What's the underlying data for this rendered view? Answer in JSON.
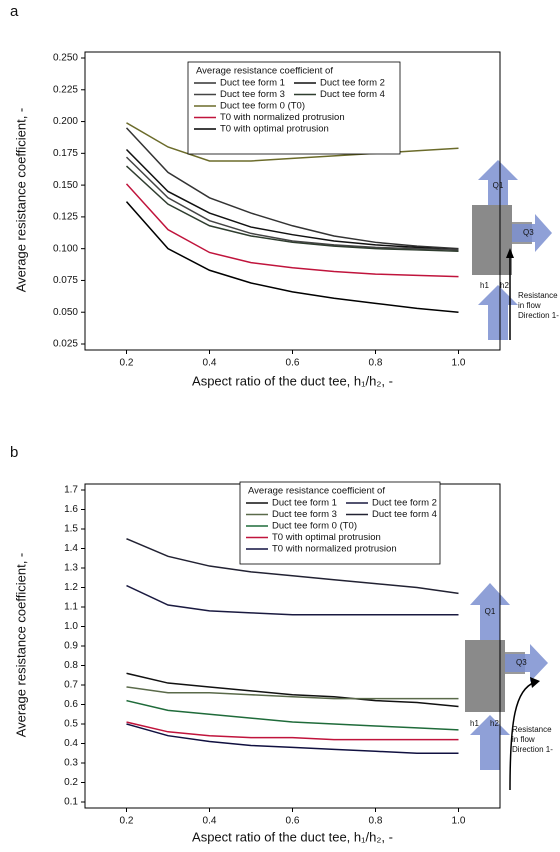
{
  "chart_data": [
    {
      "type": "line",
      "panel_label": "a",
      "xlabel": "Aspect ratio of the duct tee, h₁/h₂, -",
      "ylabel": "Average resistance coefficient, -",
      "legend_title": "Average resistance coefficient of",
      "x": [
        0.2,
        0.3,
        0.4,
        0.5,
        0.6,
        0.7,
        0.8,
        0.9,
        1.0
      ],
      "xlim": [
        0.1,
        1.1
      ],
      "xticks": [
        0.2,
        0.4,
        0.6,
        0.8,
        {
          "value": 1,
          "label": "1.0"
        }
      ],
      "ylim": [
        0.025,
        0.25
      ],
      "yticks": [
        0.025,
        {
          "value": 0.05,
          "label": "0.050"
        },
        0.075,
        {
          "value": 0.1,
          "label": "0.100"
        },
        0.125,
        {
          "value": 0.15,
          "label": "0.150"
        },
        0.175,
        {
          "value": 0.2,
          "label": "0.200"
        },
        0.225,
        {
          "value": 0.25,
          "label": "0.250"
        }
      ],
      "series": [
        {
          "name": "Duct tee form 1",
          "color": "#333333",
          "values": [
            0.195,
            0.16,
            0.14,
            0.128,
            0.118,
            0.11,
            0.105,
            0.102,
            0.1
          ]
        },
        {
          "name": "Duct tee form 2",
          "color": "#111111",
          "values": [
            0.178,
            0.145,
            0.128,
            0.117,
            0.111,
            0.106,
            0.103,
            0.101,
            0.099
          ]
        },
        {
          "name": "Duct tee form 3",
          "color": "#444444",
          "values": [
            0.172,
            0.14,
            0.122,
            0.112,
            0.106,
            0.103,
            0.101,
            0.1,
            0.099
          ]
        },
        {
          "name": "Duct tee form 4",
          "color": "#2f3d2f",
          "values": [
            0.165,
            0.135,
            0.118,
            0.11,
            0.105,
            0.102,
            0.1,
            0.099,
            0.098
          ]
        },
        {
          "name": "Duct tee form 0 (T0)",
          "color": "#6b6b2a",
          "values": [
            0.199,
            0.18,
            0.169,
            0.169,
            0.171,
            0.173,
            0.175,
            0.177,
            0.179
          ]
        },
        {
          "name": "T0 with normalized protrusion",
          "color": "#c0143c",
          "values": [
            0.151,
            0.115,
            0.097,
            0.089,
            0.085,
            0.082,
            0.08,
            0.079,
            0.078
          ]
        },
        {
          "name": "T0 with optimal protrusion",
          "color": "#000000",
          "values": [
            0.137,
            0.1,
            0.083,
            0.073,
            0.066,
            0.061,
            0.057,
            0.053,
            0.05
          ]
        }
      ],
      "annotation": [
        "Resistance",
        "in flow",
        "Direction 1-"
      ],
      "inset_labels": [
        "Q1",
        "Q3",
        "h1",
        "h2"
      ]
    },
    {
      "type": "line",
      "panel_label": "b",
      "xlabel": "Aspect ratio of the duct tee, h₁/h₂, -",
      "ylabel": "Average resistance coefficient, -",
      "legend_title": "Average resistance coefficient of",
      "x": [
        0.2,
        0.3,
        0.4,
        0.5,
        0.6,
        0.7,
        0.8,
        0.9,
        1.0
      ],
      "xlim": [
        0.1,
        1.1
      ],
      "xticks": [
        0.2,
        0.4,
        0.6,
        0.8,
        {
          "value": 1,
          "label": "1.0"
        }
      ],
      "ylim": [
        0.1,
        1.7
      ],
      "yticks": [
        0.1,
        0.2,
        0.3,
        0.4,
        0.5,
        0.6,
        0.7,
        0.8,
        0.9,
        {
          "value": 1,
          "label": "1.0"
        },
        1.1,
        1.2,
        1.3,
        1.4,
        1.5,
        1.6,
        1.7
      ],
      "series": [
        {
          "name": "Duct tee form 1",
          "color": "#111111",
          "values": [
            0.76,
            0.71,
            0.69,
            0.67,
            0.65,
            0.64,
            0.62,
            0.61,
            0.59
          ]
        },
        {
          "name": "Duct tee form 2",
          "color": "#1a1a40",
          "values": [
            1.21,
            1.11,
            1.08,
            1.07,
            1.06,
            1.06,
            1.06,
            1.06,
            1.06
          ]
        },
        {
          "name": "Duct tee form 3",
          "color": "#5a6a4a",
          "values": [
            0.69,
            0.66,
            0.66,
            0.65,
            0.64,
            0.63,
            0.63,
            0.63,
            0.63
          ]
        },
        {
          "name": "Duct tee form 4",
          "color": "#222233",
          "values": [
            1.45,
            1.36,
            1.31,
            1.28,
            1.26,
            1.24,
            1.22,
            1.2,
            1.17
          ]
        },
        {
          "name": "Duct tee form 0 (T0)",
          "color": "#1f6b3a",
          "values": [
            0.62,
            0.57,
            0.55,
            0.53,
            0.51,
            0.5,
            0.49,
            0.48,
            0.47
          ]
        },
        {
          "name": "T0 with optimal protrusion",
          "color": "#c0143c",
          "values": [
            0.51,
            0.46,
            0.44,
            0.43,
            0.43,
            0.42,
            0.42,
            0.42,
            0.42
          ]
        },
        {
          "name": "T0 with normalized protrusion",
          "color": "#101040",
          "values": [
            0.5,
            0.44,
            0.41,
            0.39,
            0.38,
            0.37,
            0.36,
            0.35,
            0.35
          ]
        }
      ],
      "annotation": [
        "Resistance",
        "in flow",
        "Direction 1-"
      ],
      "inset_labels": [
        "Q1",
        "Q3",
        "h1",
        "h2"
      ]
    }
  ]
}
